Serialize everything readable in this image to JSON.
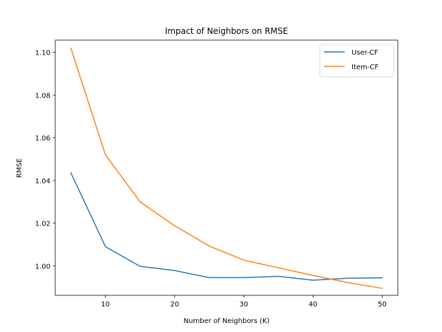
{
  "chart_data": {
    "type": "line",
    "title": "Impact of Neighbors on RMSE",
    "xlabel": "Number of Neighbors (K)",
    "ylabel": "RMSE",
    "x": [
      5,
      10,
      15,
      20,
      25,
      30,
      35,
      40,
      45,
      50
    ],
    "xlim": [
      2.75,
      52.25
    ],
    "ylim": [
      0.9862,
      1.1057
    ],
    "xticks": [
      10,
      20,
      30,
      40,
      50
    ],
    "yticks": [
      1.0,
      1.02,
      1.04,
      1.06,
      1.08,
      1.1
    ],
    "xtick_labels": [
      "10",
      "20",
      "30",
      "40",
      "50"
    ],
    "ytick_labels": [
      "1.00",
      "1.02",
      "1.04",
      "1.06",
      "1.08",
      "1.10"
    ],
    "grid": false,
    "legend_position": "top-right",
    "series": [
      {
        "name": "User-CF",
        "color": "#1f77b4",
        "values": [
          1.0436,
          1.009,
          0.9998,
          0.9978,
          0.9945,
          0.9945,
          0.9951,
          0.9933,
          0.9942,
          0.9944
        ]
      },
      {
        "name": "Item-CF",
        "color": "#ff7f0e",
        "values": [
          1.102,
          1.052,
          1.03,
          1.0188,
          1.0093,
          1.0027,
          0.9991,
          0.9955,
          0.9922,
          0.9895
        ]
      }
    ]
  }
}
